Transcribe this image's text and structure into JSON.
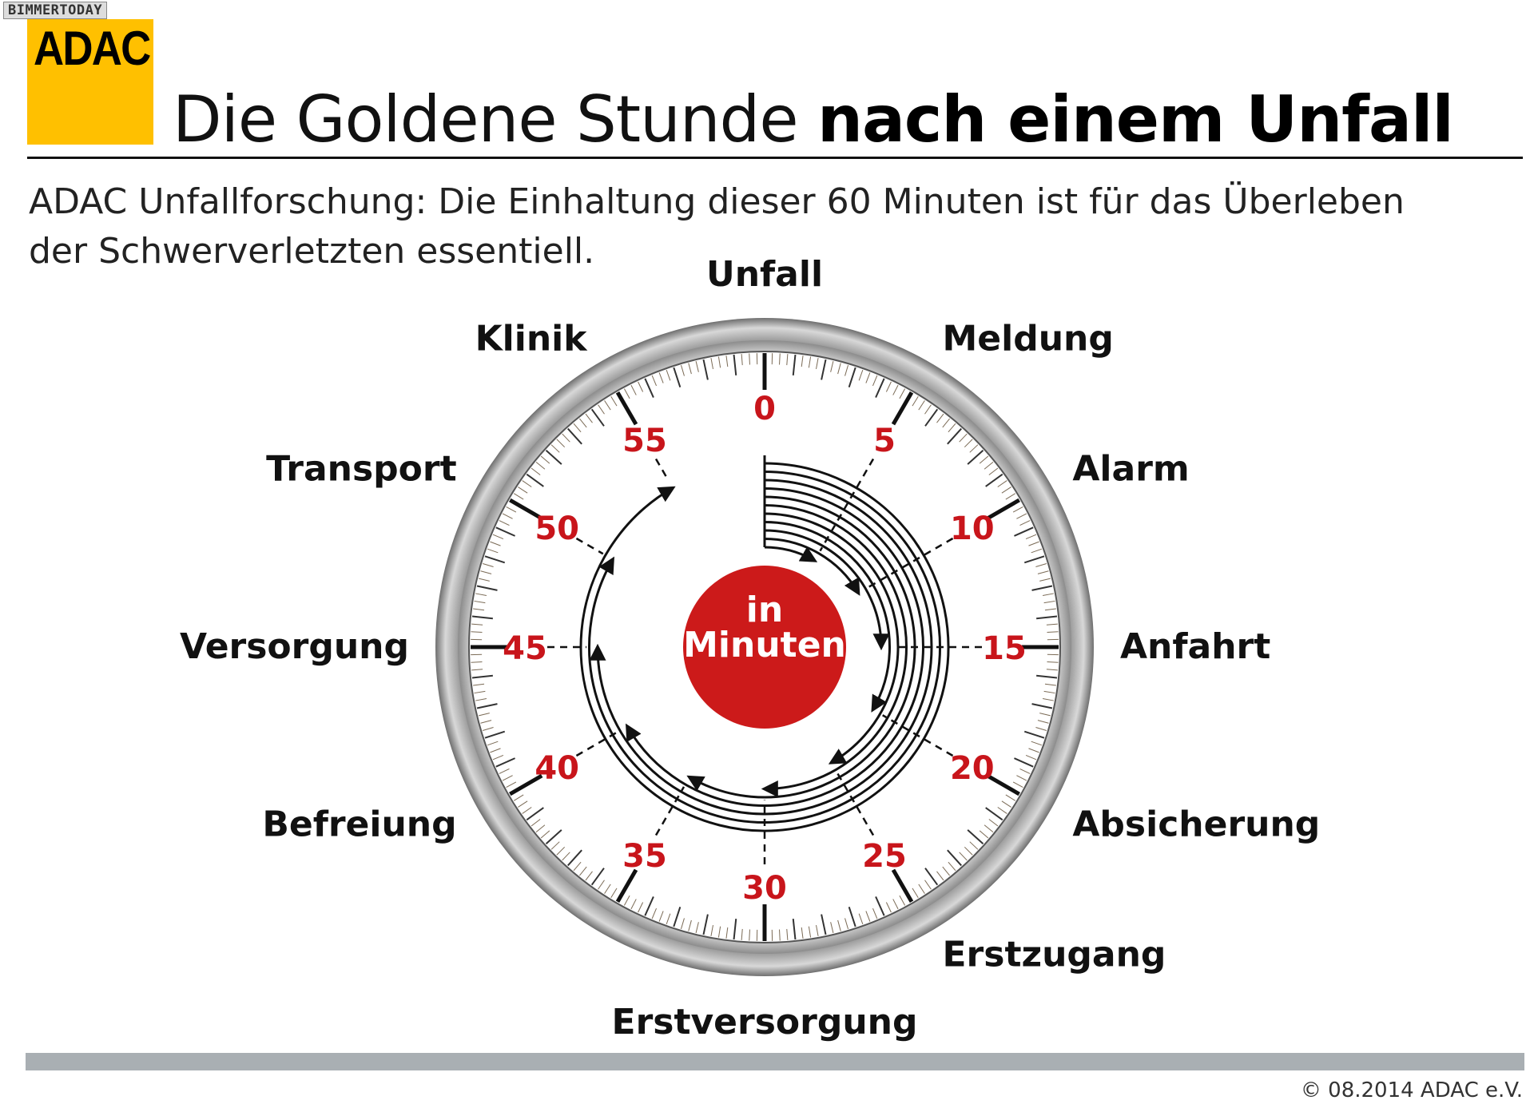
{
  "watermark": "BIMMERTODAY",
  "logo": {
    "text": "ADAC",
    "color": "#FFC000"
  },
  "header": {
    "title_light": "Die Goldene Stunde ",
    "title_bold": "nach einem Unfall"
  },
  "subtitle": {
    "line1": "ADAC Unfallforschung: Die Einhaltung dieser 60 Minuten ist für das Überleben",
    "line2": "der Schwerverletzten essentiell."
  },
  "dial": {
    "center_line1": "in",
    "center_line2": "Minuten",
    "center_color": "#CC1A1A",
    "number_color": "#C8151B",
    "total_minutes": 60,
    "minute_numbers": [
      "0",
      "5",
      "10",
      "15",
      "20",
      "25",
      "30",
      "35",
      "40",
      "45",
      "50",
      "55"
    ],
    "phases": [
      {
        "label": "Unfall",
        "minute": 0
      },
      {
        "label": "Meldung",
        "minute": 5
      },
      {
        "label": "Alarm",
        "minute": 10
      },
      {
        "label": "Anfahrt",
        "minute": 15
      },
      {
        "label": "Absicherung",
        "minute": 20
      },
      {
        "label": "Erstzugang",
        "minute": 25
      },
      {
        "label": "Erstversorgung",
        "minute": 30
      },
      {
        "label": "Befreiung",
        "minute": 40
      },
      {
        "label": "Versorgung",
        "minute": 45
      },
      {
        "label": "Transport",
        "minute": 50
      },
      {
        "label": "Klinik",
        "minute": 55
      }
    ]
  },
  "footer": {
    "copyright": "© 08.2014  ADAC e.V."
  }
}
